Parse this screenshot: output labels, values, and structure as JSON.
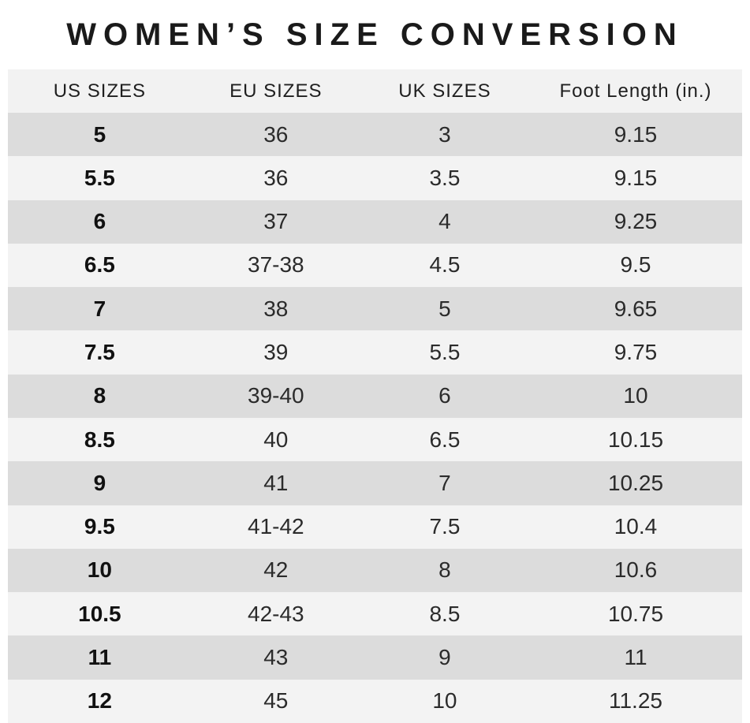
{
  "title": "WOMEN’S SIZE CONVERSION",
  "colors": {
    "background": "#ffffff",
    "header_row_bg": "#f2f2f2",
    "row_dark_bg": "#dcdcdc",
    "row_light_bg": "#f3f3f3",
    "title_text": "#1a1a1a",
    "cell_text": "#2b2b2b"
  },
  "table": {
    "columns": [
      "US SIZES",
      "EU SIZES",
      "UK SIZES",
      "Foot Length (in.)"
    ],
    "rows": [
      {
        "us": "5",
        "eu": "36",
        "uk": "3",
        "foot": "9.15"
      },
      {
        "us": "5.5",
        "eu": "36",
        "uk": "3.5",
        "foot": "9.15"
      },
      {
        "us": "6",
        "eu": "37",
        "uk": "4",
        "foot": "9.25"
      },
      {
        "us": "6.5",
        "eu": "37-38",
        "uk": "4.5",
        "foot": "9.5"
      },
      {
        "us": "7",
        "eu": "38",
        "uk": "5",
        "foot": "9.65"
      },
      {
        "us": "7.5",
        "eu": "39",
        "uk": "5.5",
        "foot": "9.75"
      },
      {
        "us": "8",
        "eu": "39-40",
        "uk": "6",
        "foot": "10"
      },
      {
        "us": "8.5",
        "eu": "40",
        "uk": "6.5",
        "foot": "10.15"
      },
      {
        "us": "9",
        "eu": "41",
        "uk": "7",
        "foot": "10.25"
      },
      {
        "us": "9.5",
        "eu": "41-42",
        "uk": "7.5",
        "foot": "10.4"
      },
      {
        "us": "10",
        "eu": "42",
        "uk": "8",
        "foot": "10.6"
      },
      {
        "us": "10.5",
        "eu": "42-43",
        "uk": "8.5",
        "foot": "10.75"
      },
      {
        "us": "11",
        "eu": "43",
        "uk": "9",
        "foot": "11"
      },
      {
        "us": "12",
        "eu": "45",
        "uk": "10",
        "foot": "11.25"
      }
    ]
  },
  "chart_data": {
    "type": "table",
    "title": "WOMEN’S SIZE CONVERSION",
    "columns": [
      "US SIZES",
      "EU SIZES",
      "UK SIZES",
      "Foot Length (in.)"
    ],
    "rows": [
      [
        "5",
        "36",
        "3",
        "9.15"
      ],
      [
        "5.5",
        "36",
        "3.5",
        "9.15"
      ],
      [
        "6",
        "37",
        "4",
        "9.25"
      ],
      [
        "6.5",
        "37-38",
        "4.5",
        "9.5"
      ],
      [
        "7",
        "38",
        "5",
        "9.65"
      ],
      [
        "7.5",
        "39",
        "5.5",
        "9.75"
      ],
      [
        "8",
        "39-40",
        "6",
        "10"
      ],
      [
        "8.5",
        "40",
        "6.5",
        "10.15"
      ],
      [
        "9",
        "41",
        "7",
        "10.25"
      ],
      [
        "9.5",
        "41-42",
        "7.5",
        "10.4"
      ],
      [
        "10",
        "42",
        "8",
        "10.6"
      ],
      [
        "10.5",
        "42-43",
        "8.5",
        "10.75"
      ],
      [
        "11",
        "43",
        "9",
        "11"
      ],
      [
        "12",
        "45",
        "10",
        "11.25"
      ]
    ],
    "layout": {
      "striped": true,
      "first_data_row_shade": "dark",
      "us_column_bold": true
    }
  }
}
